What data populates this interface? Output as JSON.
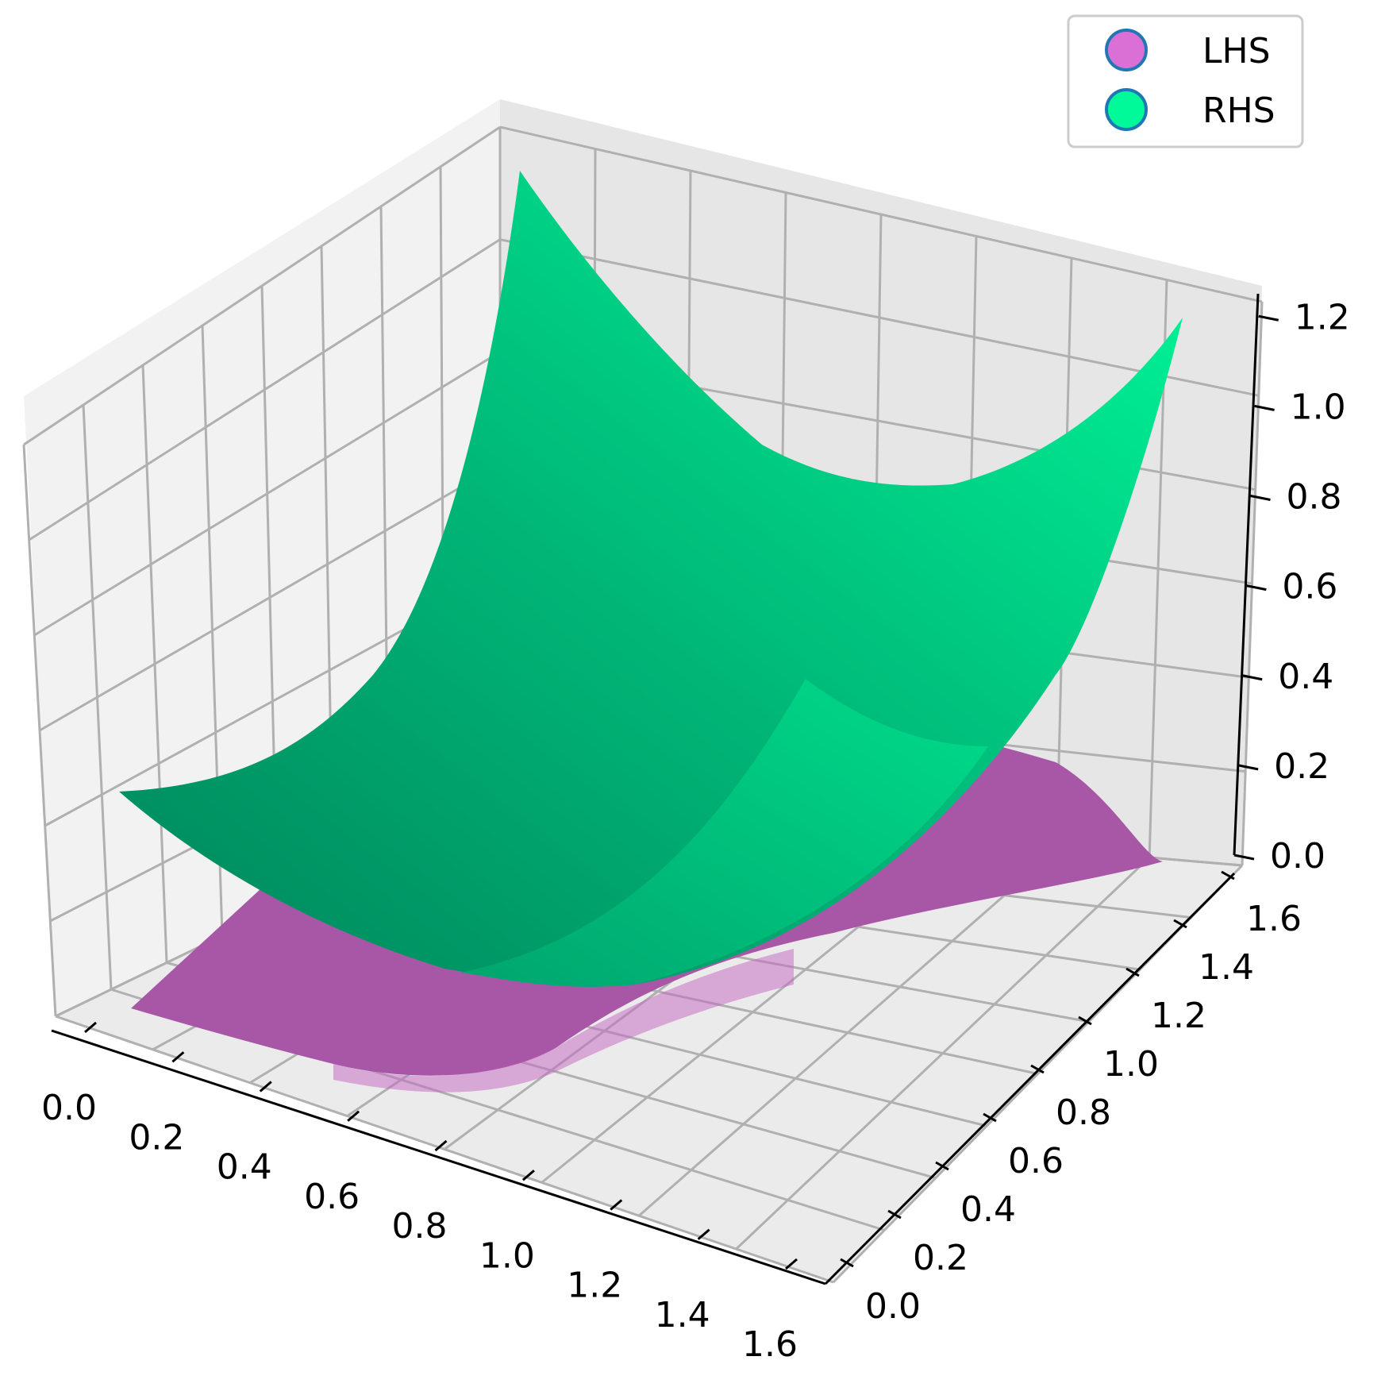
{
  "chart_data": {
    "type": "surface3d",
    "title": "",
    "xlabel": "",
    "ylabel": "",
    "zlabel": "",
    "x_ticks": [
      "0.0",
      "0.2",
      "0.4",
      "0.6",
      "0.8",
      "1.0",
      "1.2",
      "1.4",
      "1.6"
    ],
    "y_ticks": [
      "0.0",
      "0.2",
      "0.4",
      "0.6",
      "0.8",
      "1.0",
      "1.2",
      "1.4",
      "1.6"
    ],
    "z_ticks": [
      "0.0",
      "0.2",
      "0.4",
      "0.6",
      "0.8",
      "1.0",
      "1.2"
    ],
    "xlim": [
      0,
      1.6
    ],
    "ylim": [
      0,
      1.6
    ],
    "zlim": [
      0,
      1.25
    ],
    "grid": true,
    "legend": {
      "placement": "top-right",
      "entries": [
        {
          "label": "LHS",
          "color": "#da70d6"
        },
        {
          "label": "RHS",
          "color": "#00fa9a"
        }
      ]
    },
    "series": [
      {
        "name": "LHS",
        "color": "#da70d6",
        "corner_values": {
          "x0_y0": 0.0,
          "x1.6_y0": 0.0,
          "x0_y1.6": 0.0,
          "x1.6_y1.6": 0.0
        },
        "peak": {
          "x": 0.8,
          "y": 0.8,
          "z": 0.25
        }
      },
      {
        "name": "RHS",
        "color": "#00fa9a",
        "corner_values": {
          "x0_y0": 0.55,
          "x1.6_y0": 0.55,
          "x0_y1.6": 1.25,
          "x1.6_y1.6": 1.25
        },
        "minimum": {
          "x": 0.8,
          "y": 0.0,
          "z": 0.0
        }
      }
    ]
  }
}
